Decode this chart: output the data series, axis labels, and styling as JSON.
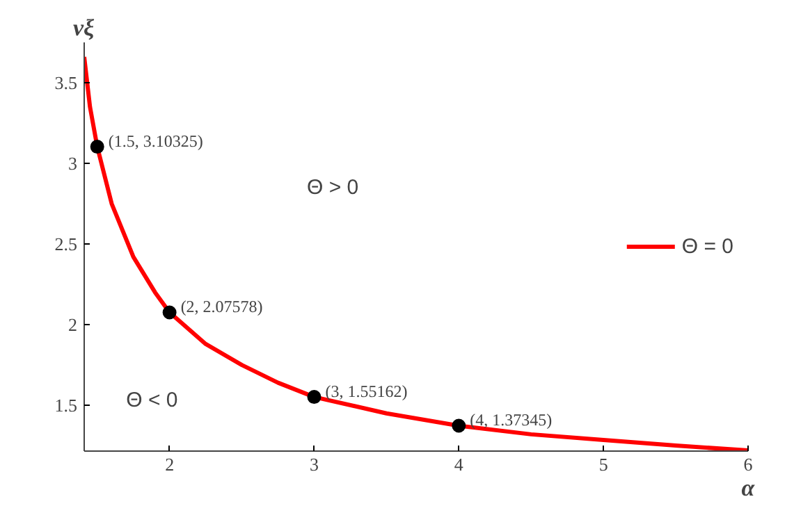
{
  "chart_data": {
    "type": "line",
    "xlabel": "α",
    "ylabel": "νξ",
    "xlim": [
      1.41,
      6
    ],
    "ylim": [
      1.216,
      3.75
    ],
    "xticks": [
      2,
      3,
      4,
      5,
      6
    ],
    "yticks": [
      1.5,
      2,
      2.5,
      3,
      3.5
    ],
    "grid": false,
    "legend": "right",
    "series": [
      {
        "name": "Θ = 0",
        "color": "#ff0000",
        "x": [
          1.41,
          1.45,
          1.5,
          1.6,
          1.75,
          1.9,
          2,
          2.25,
          2.5,
          2.75,
          3,
          3.5,
          4,
          4.5,
          5,
          5.5,
          6
        ],
        "values": [
          3.66,
          3.35,
          3.10325,
          2.75,
          2.42,
          2.2,
          2.07578,
          1.88,
          1.75,
          1.64,
          1.55162,
          1.45,
          1.37345,
          1.32,
          1.285,
          1.25,
          1.22
        ]
      },
      {
        "color": "#000000",
        "type": "scatter",
        "marker": "circle",
        "x": [
          1.5,
          2,
          3,
          4
        ],
        "values": [
          3.10325,
          2.07578,
          1.55162,
          1.37345
        ]
      }
    ],
    "annotations": [
      {
        "text": "(1.5, 3.10325)",
        "x": 1.5,
        "y": 3.10325
      },
      {
        "text": "(2, 2.07578)",
        "x": 2,
        "y": 2.07578
      },
      {
        "text": "(3, 1.55162)",
        "x": 3,
        "y": 1.55162
      },
      {
        "text": "(4, 1.37345)",
        "x": 4,
        "y": 1.37345
      },
      "Θ > 0",
      "Θ < 0"
    ]
  }
}
